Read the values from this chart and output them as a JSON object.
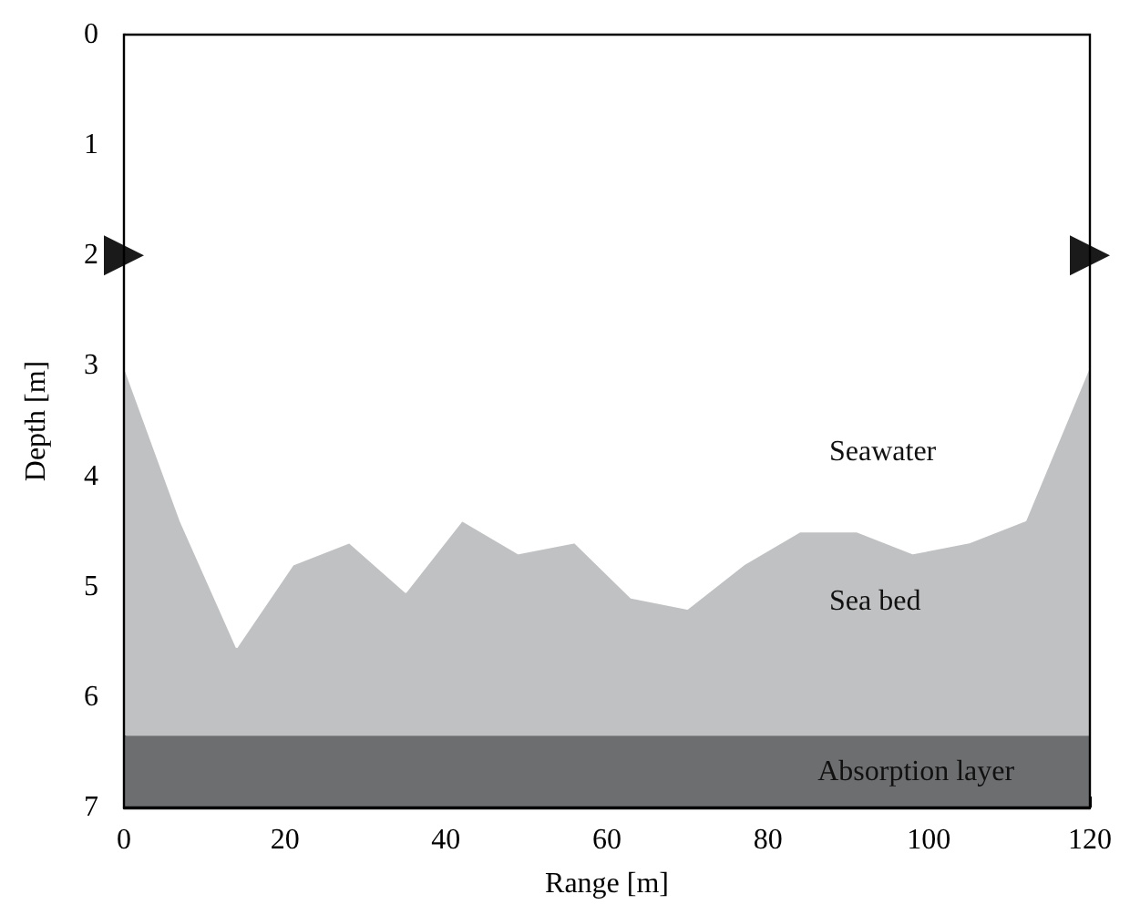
{
  "chart_data": {
    "type": "area",
    "xlabel": "Range [m]",
    "ylabel": "Depth [m]",
    "xlim": [
      0,
      120
    ],
    "xticks": [
      0,
      20,
      40,
      60,
      80,
      100,
      120
    ],
    "ylim": [
      7,
      0
    ],
    "yticks": [
      0,
      1,
      2,
      3,
      4,
      5,
      6,
      7
    ],
    "grid": false,
    "series": [
      {
        "color": "#ffffff",
        "x": [
          0,
          7,
          14,
          21,
          28,
          35,
          42,
          49,
          56,
          63,
          70,
          77,
          84,
          91,
          98,
          105,
          112,
          120
        ],
        "values": [
          3.0,
          4.4,
          5.55,
          4.8,
          4.6,
          5.05,
          4.4,
          4.7,
          4.6,
          5.1,
          5.2,
          4.8,
          4.5,
          4.5,
          4.7,
          4.6,
          4.4,
          3.0
        ]
      },
      {
        "type": "scatter",
        "color": "#1a1a1a",
        "marker": "triangle",
        "x": [
          0,
          120
        ],
        "values": [
          2,
          2
        ]
      }
    ],
    "bands": [
      {
        "axis": "y",
        "from": 0,
        "to": 6.35,
        "color": "#c0c1c2"
      },
      {
        "axis": "y",
        "from": 6.35,
        "to": 7,
        "label": "Absorption layer",
        "color": "#6d6e70"
      }
    ],
    "annotations": [
      "Seawater",
      "Sea bed"
    ]
  }
}
